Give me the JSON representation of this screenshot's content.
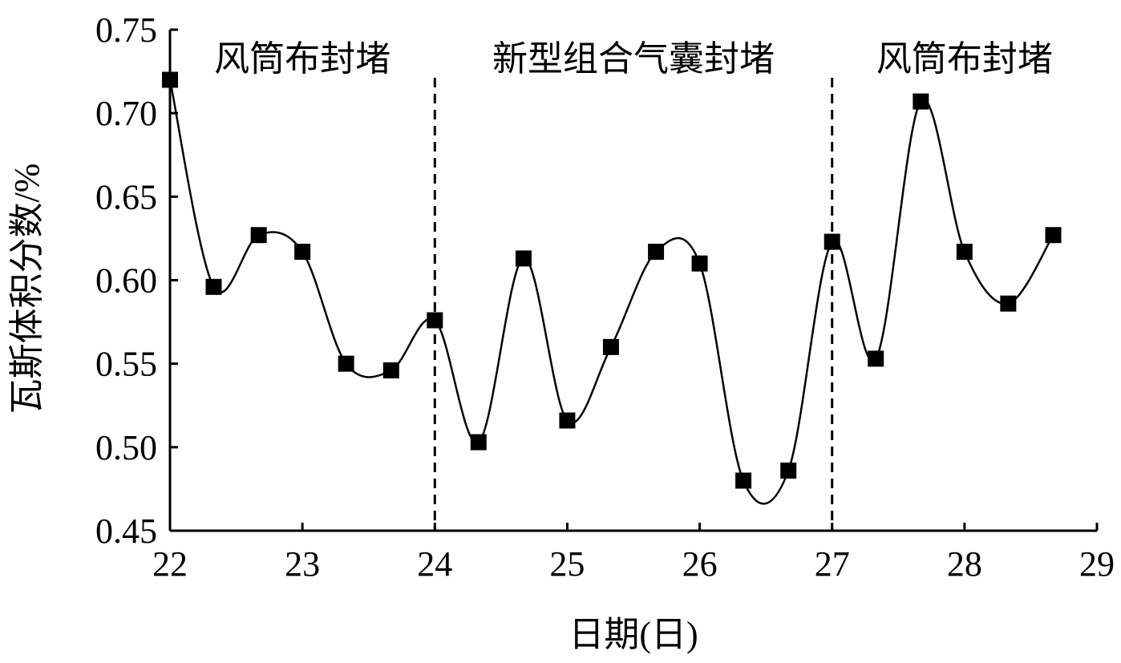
{
  "chart_data": {
    "type": "line",
    "xlabel": "日期(日)",
    "ylabel": "瓦斯体积分数/%",
    "xlim": [
      22,
      29
    ],
    "ylim": [
      0.45,
      0.75
    ],
    "xticks": [
      "22",
      "23",
      "24",
      "25",
      "26",
      "27",
      "28",
      "29"
    ],
    "yticks": [
      "0.45",
      "0.50",
      "0.55",
      "0.60",
      "0.65",
      "0.70",
      "0.75"
    ],
    "grid": false,
    "marker": "square",
    "line_style": "smooth",
    "color": "#000000",
    "series": [
      {
        "x": [
          22.0,
          22.33,
          22.67,
          23.0,
          23.33,
          23.67,
          24.0,
          24.33,
          24.67,
          25.0,
          25.33,
          25.67,
          26.0,
          26.33,
          26.67,
          27.0,
          27.33,
          27.67,
          28.0,
          28.33,
          28.67
        ],
        "y": [
          0.72,
          0.596,
          0.627,
          0.617,
          0.55,
          0.546,
          0.576,
          0.503,
          0.613,
          0.516,
          0.56,
          0.617,
          0.61,
          0.48,
          0.486,
          0.623,
          0.553,
          0.707,
          0.617,
          0.586,
          0.627
        ]
      }
    ],
    "dividers": [
      24,
      27
    ],
    "regions": [
      {
        "label": "风筒布封堵",
        "center": 23.0
      },
      {
        "label": "新型组合气囊封堵",
        "center": 25.5
      },
      {
        "label": "风筒布封堵",
        "center": 28.0
      }
    ]
  }
}
